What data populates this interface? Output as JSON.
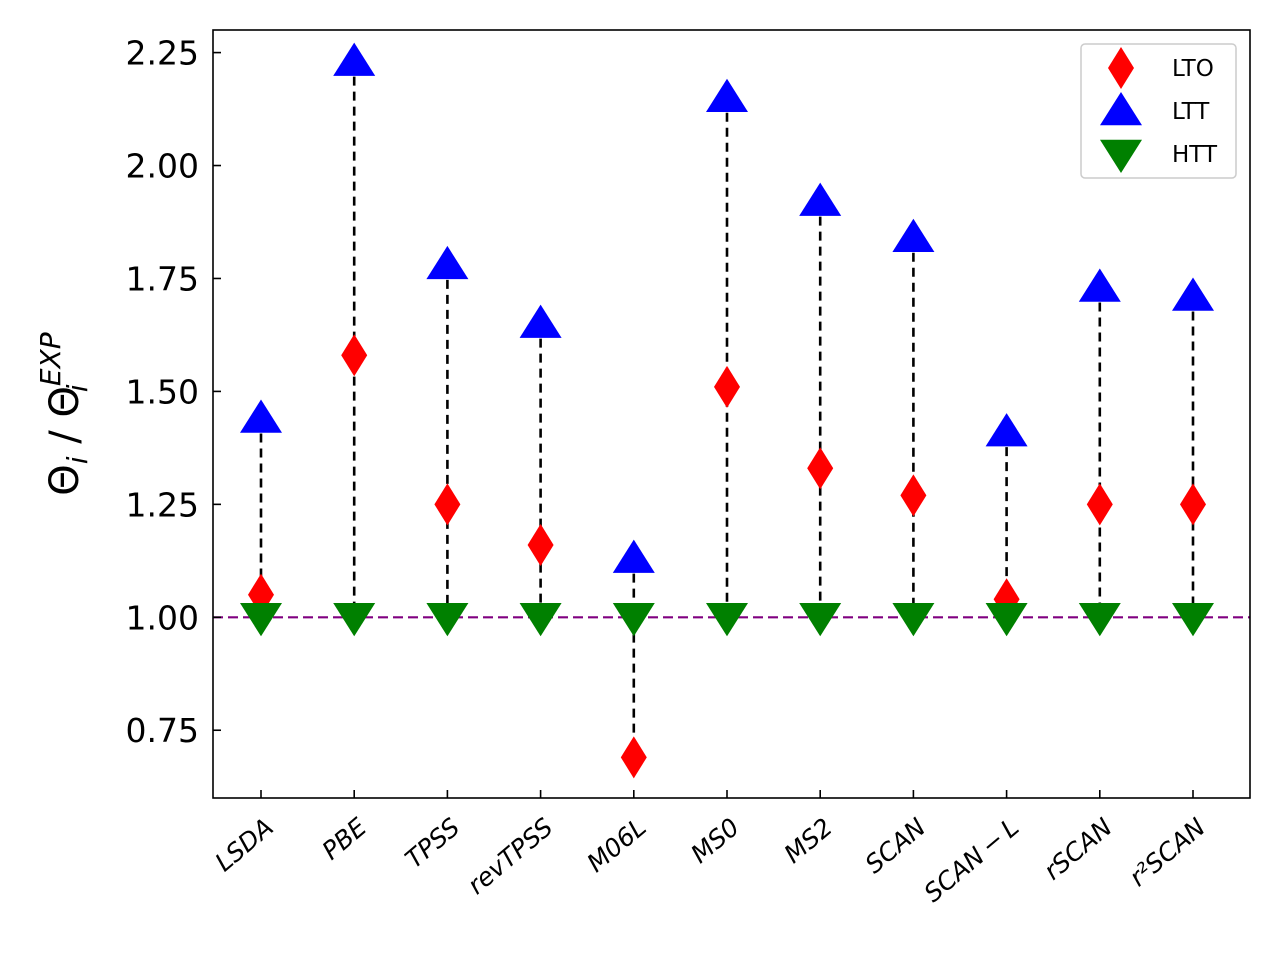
{
  "chart_data": {
    "type": "scatter",
    "categories": [
      "LSDA",
      "PBE",
      "TPSS",
      "revTPSS",
      "M06L",
      "MS0",
      "MS2",
      "SCAN",
      "SCAN − L",
      "rSCAN",
      "r²SCAN"
    ],
    "series": [
      {
        "name": "LTO",
        "marker": "diamond",
        "color": "#ff0000",
        "values": [
          1.05,
          1.58,
          1.25,
          1.16,
          0.69,
          1.51,
          1.33,
          1.27,
          1.04,
          1.25,
          1.25
        ]
      },
      {
        "name": "LTT",
        "marker": "triangle-up",
        "color": "#0000ff",
        "values": [
          1.44,
          2.23,
          1.78,
          1.65,
          1.13,
          2.15,
          1.92,
          1.84,
          1.41,
          1.73,
          1.71
        ]
      },
      {
        "name": "HTT",
        "marker": "triangle-down",
        "color": "#008000",
        "values": [
          1.0,
          1.0,
          1.0,
          1.0,
          1.0,
          1.0,
          1.0,
          1.0,
          1.0,
          1.0,
          1.0
        ]
      }
    ],
    "reference_line": {
      "y": 1.0,
      "color": "#800080",
      "style": "dashed"
    },
    "connector_style": "dashed",
    "ylabel": "Θi / ΘiEXP",
    "ylabel_parts": {
      "base": "Θ",
      "sub": "i",
      "sep": " / ",
      "base2": "Θ",
      "sup": "EXP",
      "sub2": "i"
    },
    "xlabel": "",
    "title": "",
    "ylim": [
      0.6,
      2.3
    ],
    "yticks": [
      0.75,
      1.0,
      1.25,
      1.5,
      1.75,
      2.0,
      2.25
    ],
    "ytick_labels": [
      "0.75",
      "1.00",
      "1.25",
      "1.50",
      "1.75",
      "2.00",
      "2.25"
    ],
    "legend_position": "top-right",
    "grid": false
  }
}
